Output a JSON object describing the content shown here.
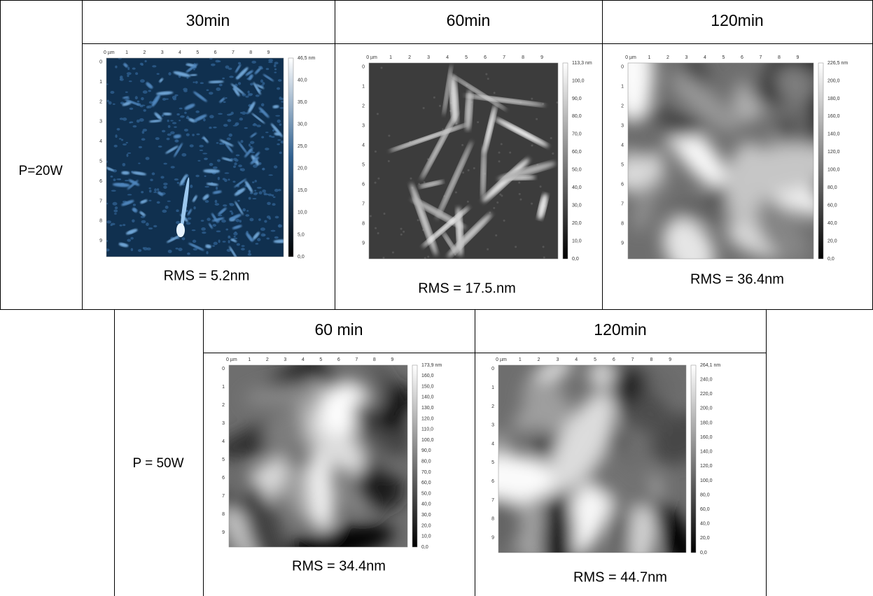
{
  "table_1": {
    "header": [
      "30min",
      "60min",
      "120min"
    ],
    "row_label": "P=20W",
    "cells": [
      {
        "caption": "RMS = 5.2nm",
        "scale": [
          "46,5 nm",
          "40,0",
          "35,0",
          "30,0",
          "25,0",
          "20,0",
          "15,0",
          "10,0",
          "5,0",
          "0,0"
        ]
      },
      {
        "caption": "RMS = 17.5.nm",
        "scale": [
          "113,3 nm",
          "100,0",
          "90,0",
          "80,0",
          "70,0",
          "60,0",
          "50,0",
          "40,0",
          "30,0",
          "20,0",
          "10,0",
          "0,0"
        ]
      },
      {
        "caption": "RMS = 36.4nm",
        "scale": [
          "226,5 nm",
          "200,0",
          "180,0",
          "160,0",
          "140,0",
          "120,0",
          "100,0",
          "80,0",
          "60,0",
          "40,0",
          "20,0",
          "0,0"
        ]
      }
    ]
  },
  "table_2": {
    "header": [
      "60 min",
      "120min"
    ],
    "row_label": "P = 50W",
    "cells": [
      {
        "caption": "RMS = 34.4nm",
        "scale": [
          "173,9 nm",
          "160,0",
          "150,0",
          "140,0",
          "130,0",
          "120,0",
          "110,0",
          "100,0",
          "90,0",
          "80,0",
          "70,0",
          "60,0",
          "50,0",
          "40,0",
          "30,0",
          "20,0",
          "10,0",
          "0,0"
        ]
      },
      {
        "caption": "RMS = 44.7nm",
        "scale": [
          "264,1 nm",
          "240,0",
          "220,0",
          "200,0",
          "180,0",
          "160,0",
          "140,0",
          "120,0",
          "100,0",
          "80,0",
          "60,0",
          "40,0",
          "20,0",
          "0,0"
        ]
      }
    ]
  },
  "image_axes": {
    "x_ticks": [
      "0 µm",
      "1",
      "2",
      "3",
      "4",
      "5",
      "6",
      "7",
      "8",
      "9"
    ],
    "y_ticks": [
      "0",
      "1",
      "2",
      "3",
      "4",
      "5",
      "6",
      "7",
      "8",
      "9"
    ]
  }
}
